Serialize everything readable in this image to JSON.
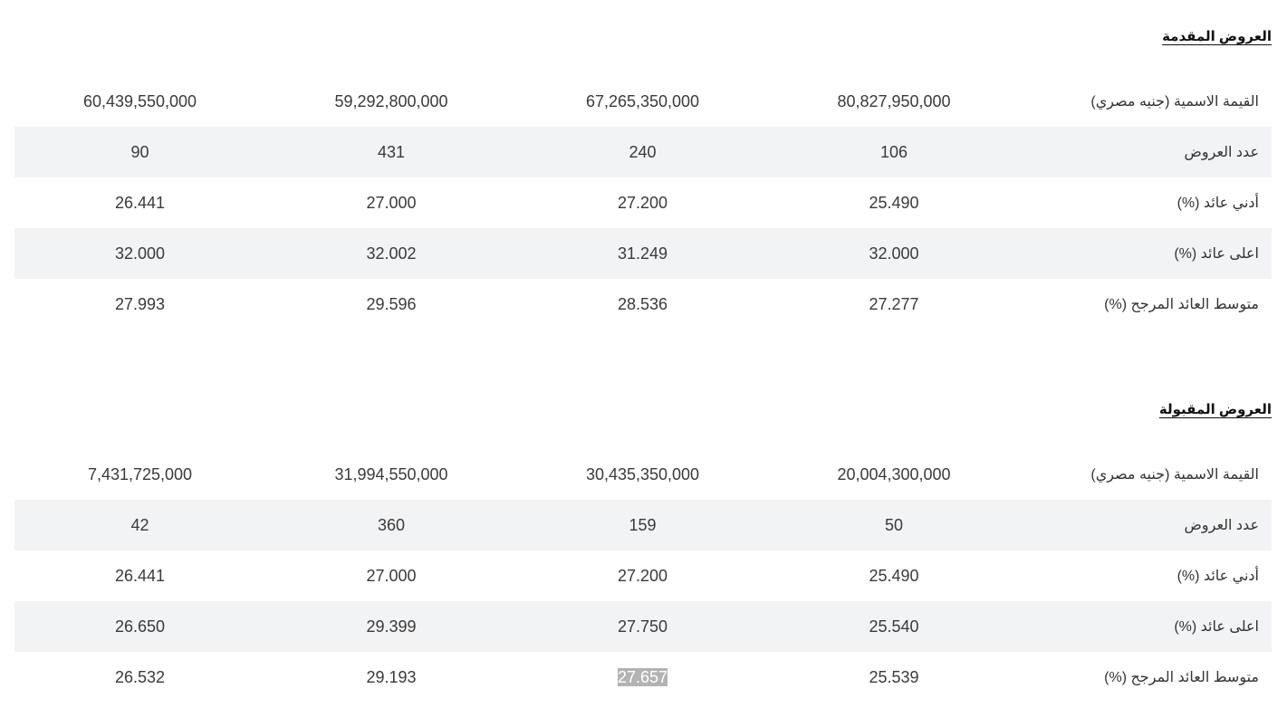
{
  "sections": [
    {
      "title": "العروض المقدمة",
      "rows": [
        {
          "label": "القيمة الاسمية (جنيه مصري)",
          "values": [
            "60,439,550,000",
            "59,292,800,000",
            "67,265,350,000",
            "80,827,950,000"
          ]
        },
        {
          "label": "عدد العروض",
          "values": [
            "90",
            "431",
            "240",
            "106"
          ]
        },
        {
          "label": "أدني عائد (%)",
          "values": [
            "26.441",
            "27.000",
            "27.200",
            "25.490"
          ]
        },
        {
          "label": "اعلى عائد (%)",
          "values": [
            "32.000",
            "32.002",
            "31.249",
            "32.000"
          ]
        },
        {
          "label": "متوسط العائد المرجح (%)",
          "values": [
            "27.993",
            "29.596",
            "28.536",
            "27.277"
          ]
        }
      ]
    },
    {
      "title": "العروض المقبولة",
      "rows": [
        {
          "label": "القيمة الاسمية (جنيه مصري)",
          "values": [
            "7,431,725,000",
            "31,994,550,000",
            "30,435,350,000",
            "20,004,300,000"
          ]
        },
        {
          "label": "عدد العروض",
          "values": [
            "42",
            "360",
            "159",
            "50"
          ]
        },
        {
          "label": "أدني عائد (%)",
          "values": [
            "26.441",
            "27.000",
            "27.200",
            "25.490"
          ]
        },
        {
          "label": "اعلى عائد (%)",
          "values": [
            "26.650",
            "29.399",
            "27.750",
            "25.540"
          ]
        },
        {
          "label": "متوسط العائد المرجح (%)",
          "values": [
            "26.532",
            "29.193",
            "27.657",
            "25.539"
          ]
        }
      ]
    }
  ],
  "colors": {
    "row_shade": "#f2f3f5",
    "text": "#333333",
    "selection_highlight": "#b3b3b3"
  }
}
